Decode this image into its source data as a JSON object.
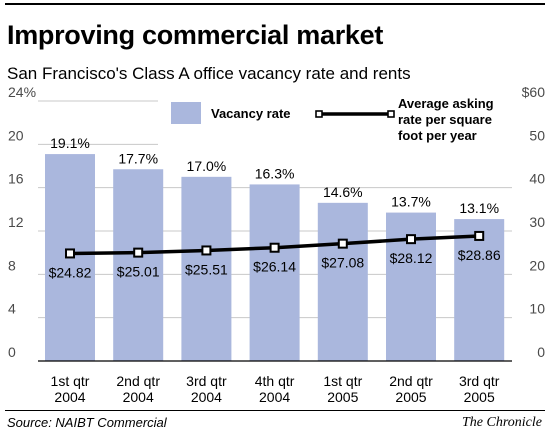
{
  "header": {
    "title": "Improving commercial market",
    "subtitle": "San Francisco's Class A office vacancy rate and rents"
  },
  "footer": {
    "source": "Source: NAIBT Commercial",
    "credit": "The Chronicle"
  },
  "chart_data": {
    "type": "bar",
    "title": "Improving commercial market",
    "subtitle": "San Francisco's Class A office vacancy rate and rents",
    "categories": [
      [
        "1st qtr",
        "2004"
      ],
      [
        "2nd qtr",
        "2004"
      ],
      [
        "3rd qtr",
        "2004"
      ],
      [
        "4th qtr",
        "2004"
      ],
      [
        "1st qtr",
        "2005"
      ],
      [
        "2nd qtr",
        "2005"
      ],
      [
        "3rd qtr",
        "2005"
      ]
    ],
    "series": [
      {
        "name": "Vacancy rate",
        "type": "bar",
        "axis": "left",
        "color": "#aab7dd",
        "values": [
          19.1,
          17.7,
          17.0,
          16.3,
          14.6,
          13.7,
          13.1
        ],
        "labels": [
          "19.1%",
          "17.7%",
          "17.0%",
          "16.3%",
          "14.6%",
          "13.7%",
          "13.1%"
        ]
      },
      {
        "name": "Average asking rate per square foot per year",
        "name_lines": [
          "Average asking",
          "rate per square",
          "foot per year"
        ],
        "type": "line",
        "axis": "right",
        "color": "#000000",
        "values": [
          24.82,
          25.01,
          25.51,
          26.14,
          27.08,
          28.12,
          28.86
        ],
        "labels": [
          "$24.82",
          "$25.01",
          "$25.51",
          "$26.14",
          "$27.08",
          "$28.12",
          "$28.86"
        ]
      }
    ],
    "y_left": {
      "ylim": [
        0,
        24
      ],
      "ticks": [
        0,
        4,
        8,
        12,
        16,
        20,
        24
      ],
      "tick_labels": [
        "0",
        "4",
        "8",
        "12",
        "16",
        "20",
        "24%"
      ]
    },
    "y_right": {
      "ylim": [
        0,
        60
      ],
      "ticks": [
        0,
        10,
        20,
        30,
        40,
        50,
        60
      ],
      "tick_labels": [
        "0",
        "10",
        "20",
        "30",
        "40",
        "50",
        "$60"
      ]
    },
    "grid": true,
    "legend": "top"
  }
}
